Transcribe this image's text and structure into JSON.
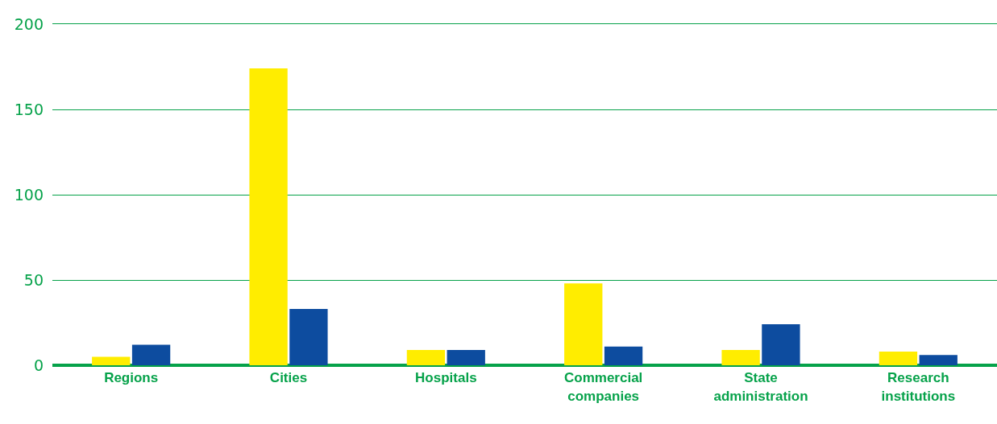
{
  "chart_data": {
    "type": "bar",
    "categories": [
      "Regions",
      "Cities",
      "Hospitals",
      "Commercial\ncompanies",
      "State\nadministration",
      "Research\ninstitutions"
    ],
    "series": [
      {
        "color": "#ffed00",
        "values": [
          5,
          174,
          9,
          48,
          9,
          8
        ]
      },
      {
        "color": "#0d4c9f",
        "values": [
          12,
          33,
          9,
          11,
          24,
          6
        ]
      }
    ],
    "ylim": [
      0,
      200
    ],
    "yticks": [
      0,
      50,
      100,
      150,
      200
    ],
    "grid": "y"
  }
}
